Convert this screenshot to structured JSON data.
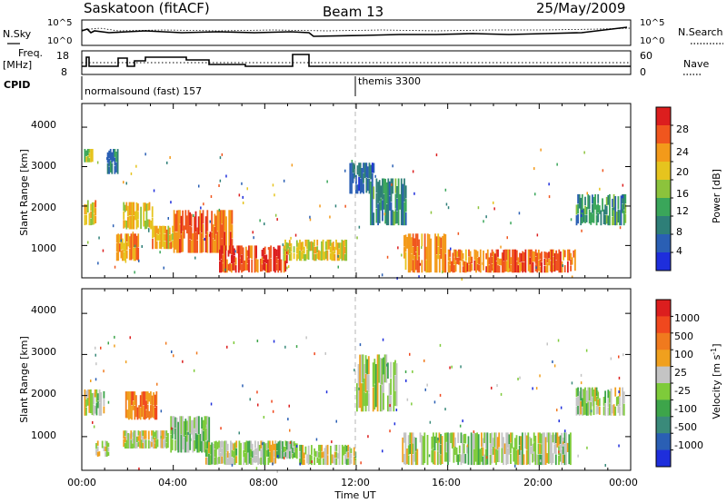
{
  "header": {
    "station": "Saskatoon (fitACF)",
    "beam": "Beam 13",
    "date": "25/May/2009"
  },
  "summary_panel": {
    "nsky_label": "N.Sky",
    "nsearch_label": "N.Search",
    "nsky_ticks": [
      "10^5",
      "10^0"
    ],
    "nsearch_ticks": [
      "10^5",
      "10^0"
    ],
    "freq_label_line1": "Freq.",
    "freq_label_line2": "[MHz]",
    "freq_ticks": [
      "18",
      "8"
    ],
    "nave_label": "Nave",
    "nave_ticks": [
      "60",
      "0"
    ],
    "cpid_label": "CPID",
    "cpid_programs": [
      {
        "name": "normalsound (fast) 157",
        "start_hour": 0
      },
      {
        "name": "themis 3300",
        "start_hour": 12
      }
    ]
  },
  "axes": {
    "y_label": "Slant Range [km]",
    "y_ticks": [
      "4000",
      "3000",
      "2000",
      "1000"
    ],
    "x_ticks": [
      "00:00",
      "04:00",
      "08:00",
      "12:00",
      "16:00",
      "20:00",
      "00:00"
    ],
    "x_label": "Time UT"
  },
  "colorbars": {
    "power": {
      "title": "Power [dB]",
      "ticks": [
        "28",
        "24",
        "20",
        "16",
        "12",
        "8",
        "4"
      ],
      "colors": [
        "#1e2edc",
        "#2a5fb4",
        "#2e7f78",
        "#3aa65a",
        "#8cc33c",
        "#e6c41e",
        "#f39a1a",
        "#f0561e",
        "#dc1e1e"
      ]
    },
    "velocity": {
      "title_text": "Velocity [m s",
      "title_sup": "-1",
      "title_end": "]",
      "ticks": [
        "1000",
        "500",
        "100",
        "25",
        "-25",
        "-100",
        "-500",
        "-1000"
      ],
      "colors": [
        "#1e2edc",
        "#2a5fb4",
        "#3a8a7a",
        "#3da54a",
        "#7ecb3a",
        "#c4c4c4",
        "#f0a01e",
        "#f07a1e",
        "#f0481e",
        "#dc1e1e"
      ]
    }
  },
  "chart_data": {
    "type": "heatmap",
    "title": "Saskatoon (fitACF) Beam 13 25/May/2009",
    "xlabel": "Time UT",
    "ylabel": "Slant Range [km]",
    "xlim": [
      0,
      24
    ],
    "ylim": [
      180,
      4600
    ],
    "panels": [
      {
        "name": "Power [dB]",
        "scale": [
          0,
          30
        ],
        "regions": [
          {
            "t0": 0.1,
            "t1": 0.7,
            "r0": 1500,
            "r1": 2150,
            "value": 20
          },
          {
            "t0": 0.1,
            "t1": 0.5,
            "r0": 3100,
            "r1": 3450,
            "value": 14
          },
          {
            "t0": 1.1,
            "t1": 1.6,
            "r0": 2800,
            "r1": 3450,
            "value": 8
          },
          {
            "t0": 1.5,
            "t1": 2.5,
            "r0": 600,
            "r1": 1300,
            "value": 22
          },
          {
            "t0": 1.8,
            "t1": 3.3,
            "r0": 1400,
            "r1": 2100,
            "value": 19
          },
          {
            "t0": 3.0,
            "t1": 4.0,
            "r0": 900,
            "r1": 1500,
            "value": 20
          },
          {
            "t0": 4.0,
            "t1": 6.6,
            "r0": 800,
            "r1": 1900,
            "value": 24
          },
          {
            "t0": 6.0,
            "t1": 9.0,
            "r0": 300,
            "r1": 1000,
            "value": 26
          },
          {
            "t0": 8.8,
            "t1": 11.6,
            "r0": 600,
            "r1": 1150,
            "value": 18
          },
          {
            "t0": 11.7,
            "t1": 12.8,
            "r0": 2300,
            "r1": 3100,
            "value": 7
          },
          {
            "t0": 12.6,
            "t1": 14.2,
            "r0": 1500,
            "r1": 2700,
            "value": 10
          },
          {
            "t0": 14.0,
            "t1": 16.0,
            "r0": 300,
            "r1": 1300,
            "value": 22
          },
          {
            "t0": 16.0,
            "t1": 21.6,
            "r0": 300,
            "r1": 900,
            "value": 24
          },
          {
            "t0": 21.6,
            "t1": 23.8,
            "r0": 1500,
            "r1": 2300,
            "value": 10
          }
        ]
      },
      {
        "name": "Velocity [m s-1]",
        "scale": [
          -1000,
          1000
        ],
        "regions": [
          {
            "t0": 0.1,
            "t1": 1.0,
            "r0": 1500,
            "r1": 2150,
            "value": 0
          },
          {
            "t0": 0.6,
            "t1": 1.2,
            "r0": 500,
            "r1": 900,
            "value": 80
          },
          {
            "t0": 1.9,
            "t1": 3.3,
            "r0": 1400,
            "r1": 2100,
            "value": 500
          },
          {
            "t0": 1.8,
            "t1": 3.8,
            "r0": 700,
            "r1": 1150,
            "value": 80
          },
          {
            "t0": 3.8,
            "t1": 5.6,
            "r0": 600,
            "r1": 1500,
            "value": -100
          },
          {
            "t0": 5.4,
            "t1": 8.5,
            "r0": 300,
            "r1": 900,
            "value": 0
          },
          {
            "t0": 8.5,
            "t1": 9.5,
            "r0": 450,
            "r1": 900,
            "value": -100
          },
          {
            "t0": 9.5,
            "t1": 12.0,
            "r0": 300,
            "r1": 800,
            "value": 0
          },
          {
            "t0": 12.0,
            "t1": 13.8,
            "r0": 1600,
            "r1": 3000,
            "value": 0
          },
          {
            "t0": 14.0,
            "t1": 21.4,
            "r0": 300,
            "r1": 1100,
            "value": 0
          },
          {
            "t0": 21.6,
            "t1": 23.8,
            "r0": 1500,
            "r1": 2200,
            "value": 0
          }
        ]
      }
    ]
  }
}
